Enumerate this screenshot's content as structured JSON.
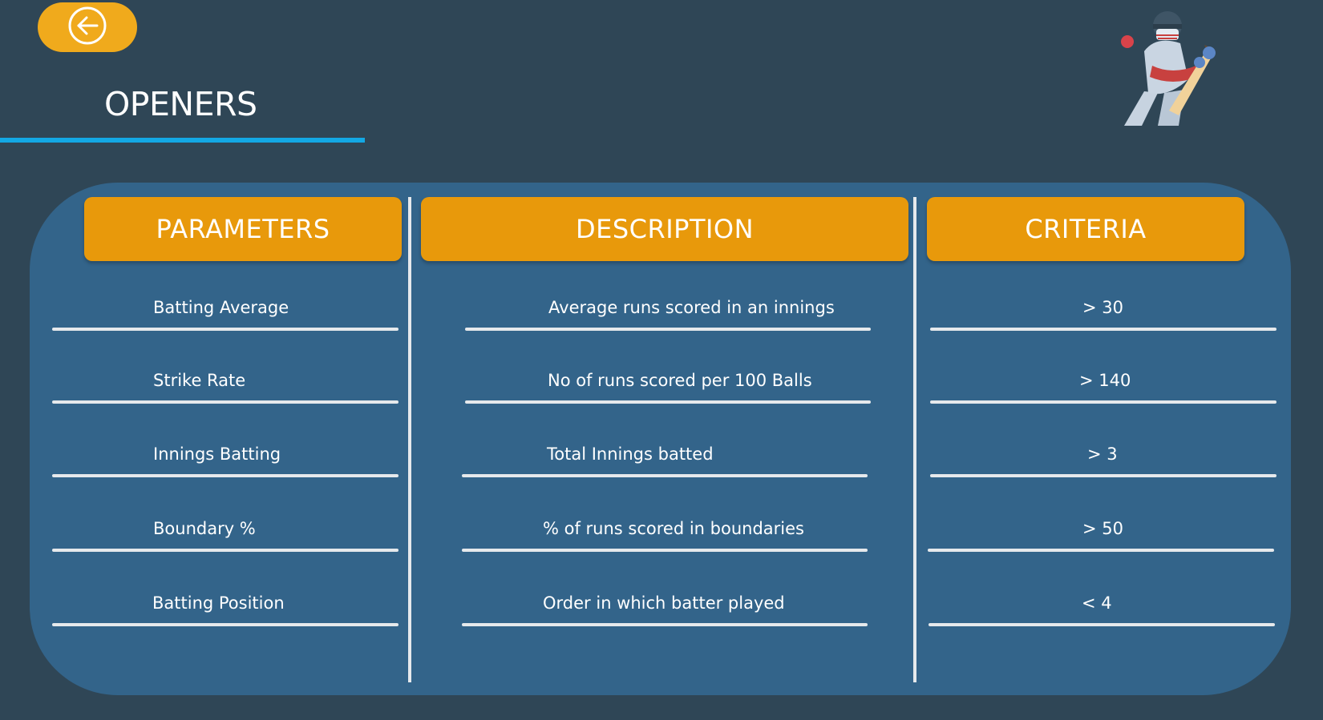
{
  "page": {
    "title": "OPENERS"
  },
  "nav": {
    "back_icon": "arrow-left-circle-icon"
  },
  "illustration": "cricket-batter-illustration",
  "colors": {
    "background": "#2f4656",
    "panel": "#33648a",
    "header_accent": "#e8990b",
    "back_button": "#f0aa1c",
    "title_underline": "#13a8e4"
  },
  "table": {
    "headers": [
      "PARAMETERS",
      "DESCRIPTION",
      "CRITERIA"
    ],
    "rows": [
      {
        "parameter": "Batting Average",
        "description": "Average runs scored in an innings",
        "criteria": "> 30"
      },
      {
        "parameter": "Strike Rate",
        "description": "No of runs scored per 100 Balls",
        "criteria": "> 140"
      },
      {
        "parameter": "Innings Batting",
        "description": "Total Innings batted",
        "criteria": "> 3"
      },
      {
        "parameter": "Boundary %",
        "description": "% of runs scored in boundaries",
        "criteria": "> 50"
      },
      {
        "parameter": "Batting Position",
        "description": "Order in which batter played",
        "criteria": "< 4"
      }
    ]
  }
}
